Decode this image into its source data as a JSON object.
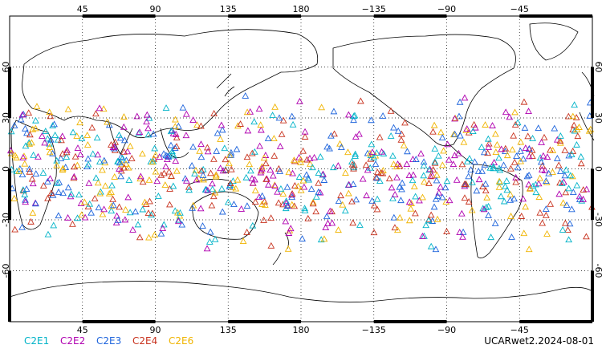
{
  "map": {
    "type": "scatter",
    "projection": "cylindrical-equidistant",
    "center_longitude": 180,
    "marker": "open-triangle",
    "gridlines": "dotted",
    "axes": {
      "lon_ticks": [
        {
          "lon": 45,
          "label": "45"
        },
        {
          "lon": 90,
          "label": "90"
        },
        {
          "lon": 135,
          "label": "135"
        },
        {
          "lon": 180,
          "label": "180"
        },
        {
          "lon": 225,
          "label": "−135"
        },
        {
          "lon": 270,
          "label": "−90"
        },
        {
          "lon": 315,
          "label": "−45"
        }
      ],
      "lat_ticks": [
        {
          "lat": 60,
          "label": "60"
        },
        {
          "lat": 30,
          "label": "30"
        },
        {
          "lat": 0,
          "label": "0"
        },
        {
          "lat": -30,
          "label": "-30"
        },
        {
          "lat": -60,
          "label": "-60"
        }
      ],
      "lon_range": [
        0,
        360
      ],
      "lat_range": [
        -90,
        90
      ]
    }
  },
  "chart_data": {
    "type": "scatter",
    "x_label": "",
    "y_label": "",
    "xlim": [
      0,
      360
    ],
    "ylim": [
      -90,
      90
    ],
    "series": [
      {
        "name": "C2E1",
        "color": "#00b3c8",
        "lat_range": [
          -48,
          45
        ],
        "count": 170
      },
      {
        "name": "C2E2",
        "color": "#b000b0",
        "lat_range": [
          -48,
          45
        ],
        "count": 170
      },
      {
        "name": "C2E3",
        "color": "#1e64dc",
        "lat_range": [
          -48,
          45
        ],
        "count": 170
      },
      {
        "name": "C2E4",
        "color": "#c8321e",
        "lat_range": [
          -48,
          45
        ],
        "count": 170
      },
      {
        "name": "C2E6",
        "color": "#f0b400",
        "lat_range": [
          -48,
          45
        ],
        "count": 170
      }
    ]
  },
  "legend": [
    {
      "label": "C2E1",
      "color": "#00b3c8"
    },
    {
      "label": "C2E2",
      "color": "#b000b0"
    },
    {
      "label": "C2E3",
      "color": "#1e64dc"
    },
    {
      "label": "C2E4",
      "color": "#c8321e"
    },
    {
      "label": "C2E6",
      "color": "#f0b400"
    }
  ],
  "footer": {
    "dataset_label": "UCARwet2.2024-08-01"
  }
}
